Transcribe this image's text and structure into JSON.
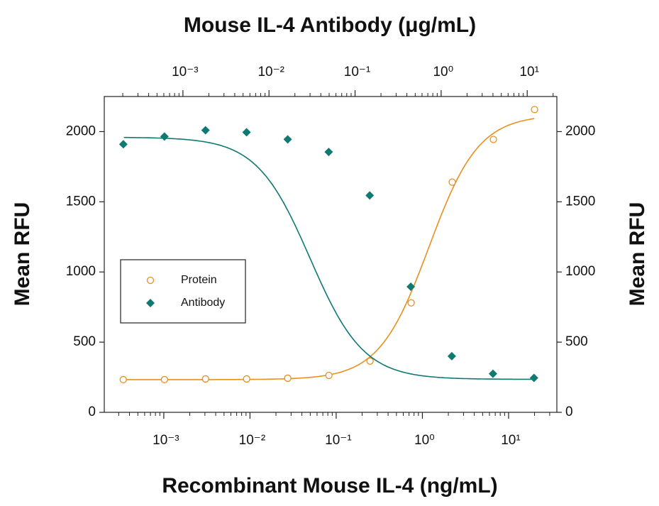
{
  "chart_data": {
    "type": "scatter",
    "title": "Mouse IL-4 Antibody (μg/mL)",
    "x_label": "Recombinant Mouse IL-4 (ng/mL)",
    "y_label": "Mean RFU",
    "y2_label": "Mean RFU",
    "xscale": "log",
    "xlim": [
      0.000204,
      36.3
    ],
    "xticks": [
      {
        "value": 0.001,
        "label": "10⁻³"
      },
      {
        "value": 0.01,
        "label": "10⁻²"
      },
      {
        "value": 0.1,
        "label": "10⁻¹"
      },
      {
        "value": 1,
        "label": "10⁰"
      },
      {
        "value": 10,
        "label": "10¹"
      }
    ],
    "x2lim": [
      0.000122,
      22.1
    ],
    "x2ticks": [
      {
        "value": 0.001,
        "label": "10⁻³"
      },
      {
        "value": 0.01,
        "label": "10⁻²"
      },
      {
        "value": 0.1,
        "label": "10⁻¹"
      },
      {
        "value": 1,
        "label": "10⁰"
      },
      {
        "value": 10,
        "label": "10¹"
      }
    ],
    "ylim": [
      0,
      2250
    ],
    "yticks": [
      0,
      500,
      1000,
      1500,
      2000
    ],
    "y2lim": [
      0,
      2250
    ],
    "y2ticks": [
      0,
      500,
      1000,
      1500,
      2000
    ],
    "legend": "left",
    "series": [
      {
        "name": "Protein",
        "color": "#e8901e",
        "marker": "circle",
        "x": [
          0.000339,
          0.00102,
          0.00305,
          0.00914,
          0.0274,
          0.0823,
          0.247,
          0.741,
          2.22,
          6.67,
          20
        ],
        "values": [
          233,
          233,
          238,
          238,
          243,
          263,
          365,
          780,
          1640,
          1944,
          2157
        ],
        "fit": {
          "bottom": 233,
          "top": 2120,
          "ec50": 1.19,
          "hill": 1.5
        }
      },
      {
        "name": "Antibody",
        "color": "#0e7a72",
        "marker": "diamond",
        "axis": "x2",
        "x": [
          0.000203,
          0.00061,
          0.00183,
          0.00549,
          0.0165,
          0.0494,
          0.148,
          0.444,
          1.33,
          4,
          12
        ],
        "values": [
          1910,
          1965,
          2010,
          1995,
          1945,
          1855,
          1545,
          895,
          400,
          275,
          245
        ],
        "fit": {
          "bottom": 235,
          "top": 1960,
          "ec50": 0.03,
          "hill": -1.4
        }
      }
    ]
  }
}
